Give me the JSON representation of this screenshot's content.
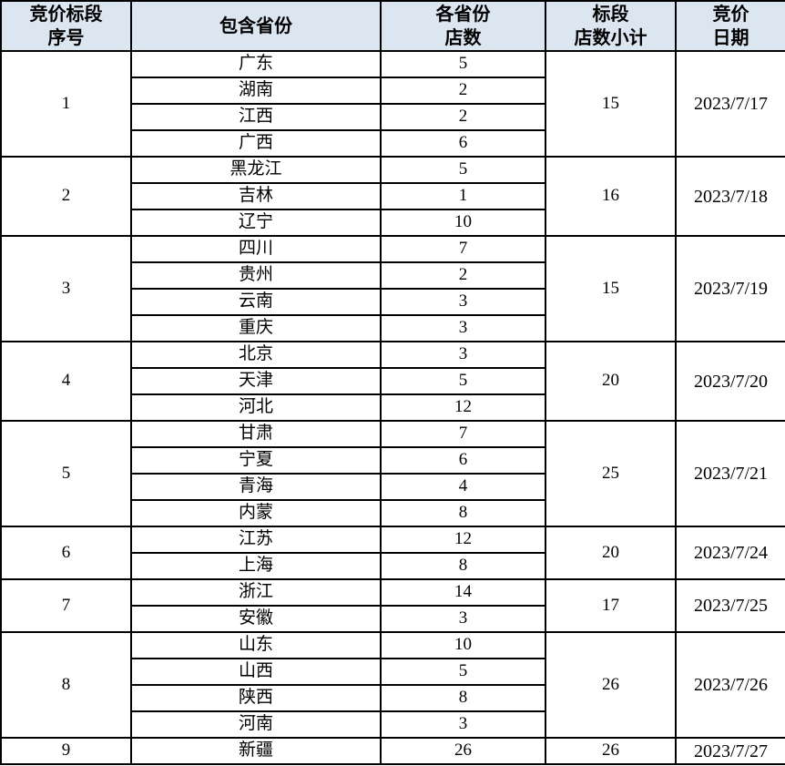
{
  "colors": {
    "header_bg": "#dce6f1",
    "border": "#000000",
    "text": "#000000"
  },
  "table": {
    "headers": [
      {
        "label": "竞价标段\n序号"
      },
      {
        "label": "包含省份"
      },
      {
        "label": "各省份\n店数"
      },
      {
        "label": "标段\n店数小计"
      },
      {
        "label": "竞价\n日期"
      }
    ],
    "sections": [
      {
        "no": "1",
        "provinces": [
          {
            "name": "广东",
            "stores": "5"
          },
          {
            "name": "湖南",
            "stores": "2"
          },
          {
            "name": "江西",
            "stores": "2"
          },
          {
            "name": "广西",
            "stores": "6"
          }
        ],
        "subtotal": "15",
        "date": "2023/7/17"
      },
      {
        "no": "2",
        "provinces": [
          {
            "name": "黑龙江",
            "stores": "5"
          },
          {
            "name": "吉林",
            "stores": "1"
          },
          {
            "name": "辽宁",
            "stores": "10"
          }
        ],
        "subtotal": "16",
        "date": "2023/7/18"
      },
      {
        "no": "3",
        "provinces": [
          {
            "name": "四川",
            "stores": "7"
          },
          {
            "name": "贵州",
            "stores": "2"
          },
          {
            "name": "云南",
            "stores": "3"
          },
          {
            "name": "重庆",
            "stores": "3"
          }
        ],
        "subtotal": "15",
        "date": "2023/7/19"
      },
      {
        "no": "4",
        "provinces": [
          {
            "name": "北京",
            "stores": "3"
          },
          {
            "name": "天津",
            "stores": "5"
          },
          {
            "name": "河北",
            "stores": "12"
          }
        ],
        "subtotal": "20",
        "date": "2023/7/20"
      },
      {
        "no": "5",
        "provinces": [
          {
            "name": "甘肃",
            "stores": "7"
          },
          {
            "name": "宁夏",
            "stores": "6"
          },
          {
            "name": "青海",
            "stores": "4"
          },
          {
            "name": "内蒙",
            "stores": "8"
          }
        ],
        "subtotal": "25",
        "date": "2023/7/21"
      },
      {
        "no": "6",
        "provinces": [
          {
            "name": "江苏",
            "stores": "12"
          },
          {
            "name": "上海",
            "stores": "8"
          }
        ],
        "subtotal": "20",
        "date": "2023/7/24"
      },
      {
        "no": "7",
        "provinces": [
          {
            "name": "浙江",
            "stores": "14"
          },
          {
            "name": "安徽",
            "stores": "3"
          }
        ],
        "subtotal": "17",
        "date": "2023/7/25"
      },
      {
        "no": "8",
        "provinces": [
          {
            "name": "山东",
            "stores": "10"
          },
          {
            "name": "山西",
            "stores": "5"
          },
          {
            "name": "陕西",
            "stores": "8"
          },
          {
            "name": "河南",
            "stores": "3"
          }
        ],
        "subtotal": "26",
        "date": "2023/7/26"
      },
      {
        "no": "9",
        "provinces": [
          {
            "name": "新疆",
            "stores": "26"
          }
        ],
        "subtotal": "26",
        "date": "2023/7/27"
      }
    ]
  },
  "chart_data": {
    "type": "table",
    "columns": [
      "竞价标段序号",
      "包含省份",
      "各省份店数",
      "标段店数小计",
      "竞价日期"
    ],
    "rows": [
      [
        "1",
        "广东",
        "5",
        "15",
        "2023/7/17"
      ],
      [
        "",
        "湖南",
        "2",
        "",
        ""
      ],
      [
        "",
        "江西",
        "2",
        "",
        ""
      ],
      [
        "",
        "广西",
        "6",
        "",
        ""
      ],
      [
        "2",
        "黑龙江",
        "5",
        "16",
        "2023/7/18"
      ],
      [
        "",
        "吉林",
        "1",
        "",
        ""
      ],
      [
        "",
        "辽宁",
        "10",
        "",
        ""
      ],
      [
        "3",
        "四川",
        "7",
        "15",
        "2023/7/19"
      ],
      [
        "",
        "贵州",
        "2",
        "",
        ""
      ],
      [
        "",
        "云南",
        "3",
        "",
        ""
      ],
      [
        "",
        "重庆",
        "3",
        "",
        ""
      ],
      [
        "4",
        "北京",
        "3",
        "20",
        "2023/7/20"
      ],
      [
        "",
        "天津",
        "5",
        "",
        ""
      ],
      [
        "",
        "河北",
        "12",
        "",
        ""
      ],
      [
        "5",
        "甘肃",
        "7",
        "25",
        "2023/7/21"
      ],
      [
        "",
        "宁夏",
        "6",
        "",
        ""
      ],
      [
        "",
        "青海",
        "4",
        "",
        ""
      ],
      [
        "",
        "内蒙",
        "8",
        "",
        ""
      ],
      [
        "6",
        "江苏",
        "12",
        "20",
        "2023/7/24"
      ],
      [
        "",
        "上海",
        "8",
        "",
        ""
      ],
      [
        "7",
        "浙江",
        "14",
        "17",
        "2023/7/25"
      ],
      [
        "",
        "安徽",
        "3",
        "",
        ""
      ],
      [
        "8",
        "山东",
        "10",
        "26",
        "2023/7/26"
      ],
      [
        "",
        "山西",
        "5",
        "",
        ""
      ],
      [
        "",
        "陕西",
        "8",
        "",
        ""
      ],
      [
        "",
        "河南",
        "3",
        "",
        ""
      ],
      [
        "9",
        "新疆",
        "26",
        "26",
        "2023/7/27"
      ]
    ]
  }
}
